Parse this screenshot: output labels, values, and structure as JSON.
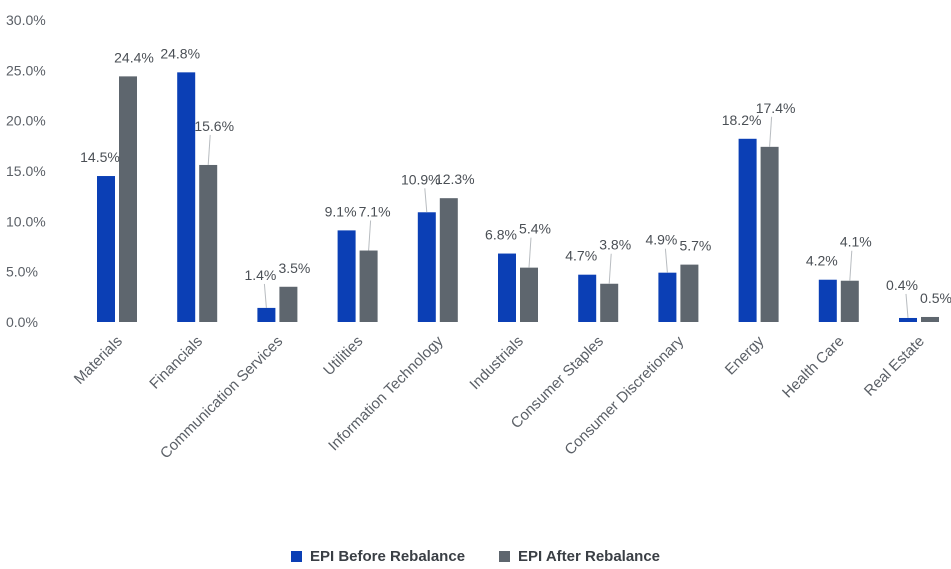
{
  "chart_data": {
    "type": "bar",
    "title": "",
    "xlabel": "",
    "ylabel": "",
    "ylim": [
      0,
      30
    ],
    "yticks": [
      "0.0%",
      "5.0%",
      "10.0%",
      "15.0%",
      "20.0%",
      "25.0%",
      "30.0%"
    ],
    "grid": false,
    "legend_position": "bottom",
    "categories": [
      "Materials",
      "Financials",
      "Communication Services",
      "Utilities",
      "Information Technology",
      "Industrials",
      "Consumer Staples",
      "Consumer Discretionary",
      "Energy",
      "Health Care",
      "Real Estate"
    ],
    "series": [
      {
        "name": "EPI Before Rebalance",
        "color": "#0b3fb5",
        "values": [
          14.5,
          24.8,
          1.4,
          9.1,
          10.9,
          6.8,
          4.7,
          4.9,
          18.2,
          4.2,
          0.4
        ],
        "labels": [
          "14.5%",
          "24.8%",
          "1.4%",
          "9.1%",
          "10.9%",
          "6.8%",
          "4.7%",
          "4.9%",
          "18.2%",
          "4.2%",
          "0.4%"
        ]
      },
      {
        "name": "EPI After Rebalance",
        "color": "#5e666e",
        "values": [
          24.4,
          15.6,
          3.5,
          7.1,
          12.3,
          5.4,
          3.8,
          5.7,
          17.4,
          4.1,
          0.5
        ],
        "labels": [
          "24.4%",
          "15.6%",
          "3.5%",
          "7.1%",
          "12.3%",
          "5.4%",
          "3.8%",
          "5.7%",
          "17.4%",
          "4.1%",
          "0.5%"
        ]
      }
    ]
  }
}
